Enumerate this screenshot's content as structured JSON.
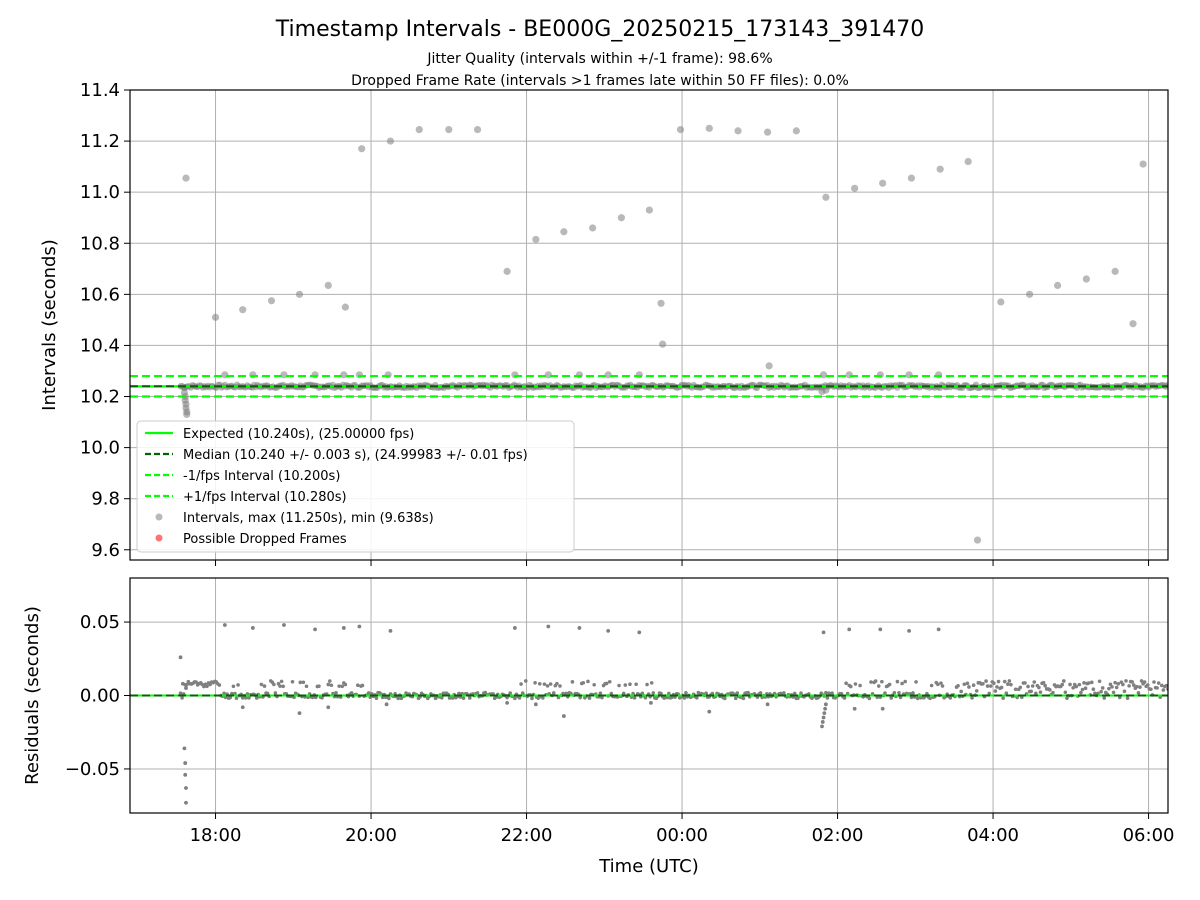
{
  "title": "Timestamp Intervals - BE000G_20250215_173143_391470",
  "subtitle_1": "Jitter Quality (intervals within +/-1 frame): 98.6%",
  "subtitle_2": "Dropped Frame Rate (intervals >1 frames late within 50 FF files): 0.0%",
  "colors": {
    "expected": "#00ff00",
    "median": "#006400",
    "fps_bounds": "#00ff00",
    "points": "#808080",
    "dropped": "#ff0000",
    "grid": "#b0b0b0"
  },
  "chart_data": [
    {
      "type": "scatter",
      "name": "intervals",
      "ylabel": "Intervals (seconds)",
      "xlabel": "",
      "x_units": "hours since 00:00 UTC on the first day (17.5 = 17:30, 24 = 00:00 next day)",
      "xlim": [
        16.9,
        30.25
      ],
      "ylim": [
        9.56,
        11.4
      ],
      "y_ticks": [
        9.6,
        9.8,
        10.0,
        10.2,
        10.4,
        10.6,
        10.8,
        11.0,
        11.2,
        11.4
      ],
      "y_tick_labels": [
        "9.6",
        "9.8",
        "10.0",
        "10.2",
        "10.4",
        "10.6",
        "10.8",
        "11.0",
        "11.2",
        "11.4"
      ],
      "grid": true,
      "legend_position": "lower-left",
      "reference_lines": [
        {
          "name": "Expected (10.240s), (25.00000 fps)",
          "y": 10.24,
          "style": "solid",
          "color": "#00ff00"
        },
        {
          "name": "Median (10.240 +/- 0.003 s), (24.99983 +/- 0.01 fps)",
          "y": 10.24,
          "style": "dashed",
          "color": "#006400"
        },
        {
          "name": "-1/fps Interval (10.200s)",
          "y": 10.2,
          "style": "dashed",
          "color": "#00ff00"
        },
        {
          "name": "+1/fps Interval (10.280s)",
          "y": 10.28,
          "style": "dashed",
          "color": "#00ff00"
        }
      ],
      "series": [
        {
          "name": "Intervals, max (11.250s), min (9.638s)",
          "color": "#808080",
          "points": [
            [
              17.62,
              11.055
            ],
            [
              18.0,
              10.51
            ],
            [
              18.35,
              10.54
            ],
            [
              18.72,
              10.575
            ],
            [
              19.08,
              10.6
            ],
            [
              19.45,
              10.635
            ],
            [
              19.67,
              10.55
            ],
            [
              19.88,
              11.17
            ],
            [
              20.25,
              11.2
            ],
            [
              20.62,
              11.245
            ],
            [
              21.0,
              11.245
            ],
            [
              21.37,
              11.245
            ],
            [
              21.75,
              10.69
            ],
            [
              22.12,
              10.815
            ],
            [
              22.48,
              10.845
            ],
            [
              22.85,
              10.86
            ],
            [
              23.22,
              10.9
            ],
            [
              23.58,
              10.93
            ],
            [
              23.73,
              10.565
            ],
            [
              23.75,
              10.405
            ],
            [
              23.98,
              11.245
            ],
            [
              24.35,
              11.25
            ],
            [
              24.72,
              11.24
            ],
            [
              25.1,
              11.235
            ],
            [
              25.47,
              11.24
            ],
            [
              25.85,
              10.98
            ],
            [
              26.22,
              11.015
            ],
            [
              26.58,
              11.035
            ],
            [
              26.95,
              11.055
            ],
            [
              27.32,
              11.09
            ],
            [
              27.68,
              11.12
            ],
            [
              27.8,
              9.638
            ],
            [
              28.1,
              10.57
            ],
            [
              28.47,
              10.6
            ],
            [
              28.83,
              10.635
            ],
            [
              29.2,
              10.66
            ],
            [
              29.57,
              10.69
            ],
            [
              29.8,
              10.485
            ],
            [
              29.93,
              11.11
            ],
            [
              25.12,
              10.32
            ],
            [
              17.6,
              10.235
            ],
            [
              17.6,
              10.215
            ],
            [
              17.61,
              10.2
            ],
            [
              17.61,
              10.185
            ],
            [
              17.62,
              10.17
            ],
            [
              17.62,
              10.155
            ],
            [
              17.63,
              10.14
            ],
            [
              17.63,
              10.13
            ],
            [
              18.12,
              10.285
            ],
            [
              18.48,
              10.285
            ],
            [
              18.88,
              10.285
            ],
            [
              19.28,
              10.285
            ],
            [
              19.65,
              10.285
            ],
            [
              19.85,
              10.285
            ],
            [
              20.22,
              10.285
            ],
            [
              21.85,
              10.285
            ],
            [
              22.28,
              10.285
            ],
            [
              22.68,
              10.285
            ],
            [
              23.05,
              10.285
            ],
            [
              23.45,
              10.285
            ],
            [
              25.82,
              10.285
            ],
            [
              26.15,
              10.285
            ],
            [
              26.55,
              10.285
            ],
            [
              26.92,
              10.285
            ],
            [
              27.3,
              10.285
            ],
            [
              25.8,
              10.22
            ],
            [
              25.85,
              10.225
            ]
          ]
        },
        {
          "name": "Possible Dropped Frames",
          "color": "#ff0000",
          "points": []
        }
      ]
    },
    {
      "type": "scatter",
      "name": "residuals",
      "ylabel": "Residuals (seconds)",
      "xlabel": "Time (UTC)",
      "x_units": "hours since 00:00 UTC on the first day",
      "xlim": [
        16.9,
        30.25
      ],
      "ylim": [
        -0.08,
        0.08
      ],
      "y_ticks": [
        -0.05,
        0.0,
        0.05
      ],
      "y_tick_labels": [
        "−0.05",
        "0.00",
        "0.05"
      ],
      "x_ticks": [
        18,
        20,
        22,
        24,
        26,
        28,
        30
      ],
      "x_tick_labels": [
        "18:00",
        "20:00",
        "22:00",
        "00:00",
        "02:00",
        "04:00",
        "06:00"
      ],
      "grid": true,
      "zero_line": {
        "y": 0.0,
        "color": "#006400",
        "style": "dashed"
      },
      "series": [
        {
          "name": "residuals",
          "color": "#808080",
          "points": [
            [
              17.55,
              0.026
            ],
            [
              17.58,
              0.008
            ],
            [
              17.62,
              0.005
            ],
            [
              17.6,
              -0.036
            ],
            [
              17.61,
              -0.046
            ],
            [
              17.61,
              -0.054
            ],
            [
              17.62,
              -0.063
            ],
            [
              17.62,
              -0.073
            ],
            [
              18.12,
              0.048
            ],
            [
              18.48,
              0.046
            ],
            [
              18.88,
              0.048
            ],
            [
              19.28,
              0.045
            ],
            [
              19.65,
              0.046
            ],
            [
              19.85,
              0.047
            ],
            [
              20.25,
              0.044
            ],
            [
              21.85,
              0.046
            ],
            [
              22.28,
              0.047
            ],
            [
              22.68,
              0.046
            ],
            [
              23.05,
              0.044
            ],
            [
              23.45,
              0.043
            ],
            [
              25.82,
              0.043
            ],
            [
              26.15,
              0.045
            ],
            [
              26.55,
              0.045
            ],
            [
              26.92,
              0.044
            ],
            [
              27.3,
              0.045
            ],
            [
              18.35,
              -0.008
            ],
            [
              19.08,
              -0.012
            ],
            [
              19.45,
              -0.008
            ],
            [
              20.2,
              -0.006
            ],
            [
              21.75,
              -0.005
            ],
            [
              22.12,
              -0.006
            ],
            [
              22.48,
              -0.014
            ],
            [
              23.6,
              -0.005
            ],
            [
              24.35,
              -0.011
            ],
            [
              25.1,
              -0.006
            ],
            [
              26.22,
              -0.009
            ],
            [
              26.58,
              -0.009
            ],
            [
              25.8,
              -0.021
            ],
            [
              25.81,
              -0.018
            ],
            [
              25.82,
              -0.015
            ],
            [
              25.83,
              -0.012
            ],
            [
              25.84,
              -0.009
            ],
            [
              25.85,
              -0.006
            ]
          ]
        }
      ]
    }
  ]
}
